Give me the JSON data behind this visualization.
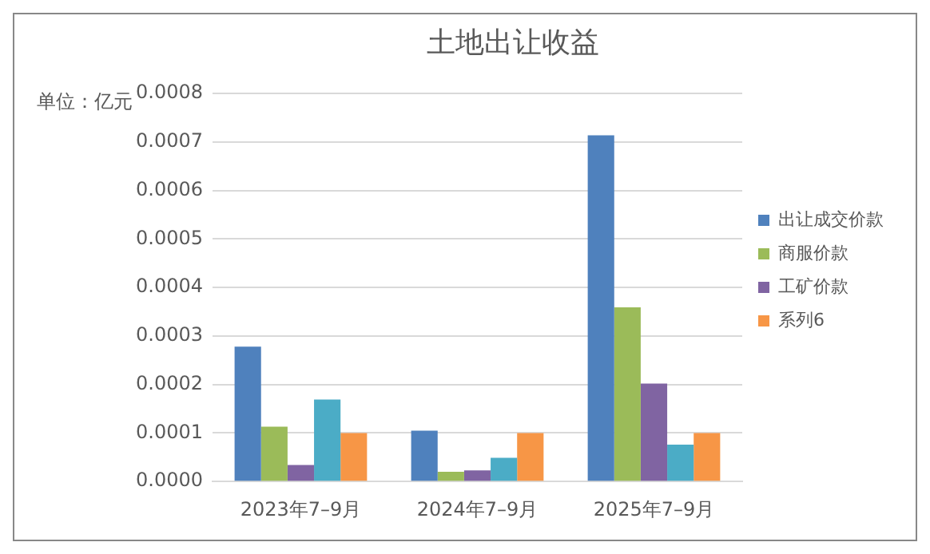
{
  "chart_data": {
    "type": "bar",
    "title": "土地出让收益",
    "ylabel": "单位：亿元",
    "categories": [
      "2023年7–9月",
      "2024年7–9月",
      "2025年7–9月"
    ],
    "series": [
      {
        "name": "出让成交价款",
        "color": "#4f81bd",
        "values": [
          0.000278,
          0.000105,
          0.000714
        ]
      },
      {
        "name": "商服价款",
        "color": "#9bbb59",
        "values": [
          0.000113,
          2e-05,
          0.000359
        ]
      },
      {
        "name": "工矿价款",
        "color": "#8064a2",
        "values": [
          3.4e-05,
          2.3e-05,
          0.000202
        ]
      },
      {
        "color": "#4bacc6",
        "values": [
          0.000169,
          4.9e-05,
          7.6e-05
        ]
      },
      {
        "name": "系列6",
        "color": "#f79646",
        "values": [
          0.0001,
          0.0001,
          0.0001
        ]
      }
    ],
    "ylim": [
      0,
      0.0008
    ],
    "yticks": [
      {
        "value": 0,
        "label": "0.0000"
      },
      0.0001,
      0.0002,
      0.0003,
      0.0004,
      0.0005,
      0.0006,
      0.0007,
      0.0008
    ],
    "grid": "y",
    "legend": "right"
  }
}
